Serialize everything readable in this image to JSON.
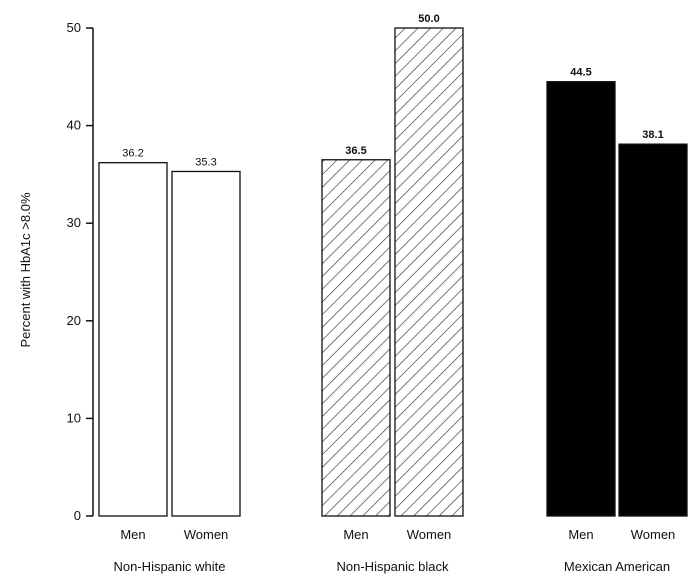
{
  "chart_data": {
    "type": "bar",
    "ylabel": "Percent with HbA1c >8.0%",
    "ylim": [
      0,
      50
    ],
    "yticks": [
      0,
      10,
      20,
      30,
      40,
      50
    ],
    "groups": [
      {
        "name": "Non-Hispanic white",
        "style": "outline",
        "bars": [
          {
            "category": "Men",
            "value": 36.2,
            "label": "36.2"
          },
          {
            "category": "Women",
            "value": 35.3,
            "label": "35.3"
          }
        ]
      },
      {
        "name": "Non-Hispanic black",
        "style": "hatched",
        "bars": [
          {
            "category": "Men",
            "value": 36.5,
            "label": "36.5"
          },
          {
            "category": "Women",
            "value": 50.0,
            "label": "50.0"
          }
        ]
      },
      {
        "name": "Mexican American",
        "style": "solid",
        "bars": [
          {
            "category": "Men",
            "value": 44.5,
            "label": "44.5"
          },
          {
            "category": "Women",
            "value": 38.1,
            "label": "38.1"
          }
        ]
      }
    ],
    "colors": {
      "ink": "#111111",
      "fill_solid": "#000000",
      "fill_outline": "#ffffff"
    }
  }
}
